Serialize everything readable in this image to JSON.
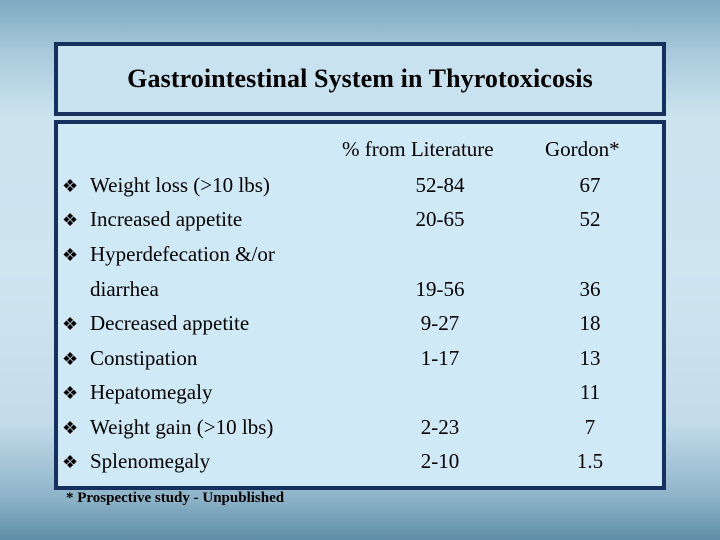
{
  "title": "Gastrointestinal System in Thyrotoxicosis",
  "bullet_glyph": "❖",
  "table": {
    "col_literature": "% from Literature",
    "col_gordon": "Gordon*",
    "rows": [
      {
        "label": "Weight loss (>10 lbs)",
        "literature": "52-84",
        "gordon": "67"
      },
      {
        "label": "Increased appetite",
        "literature": "20-65",
        "gordon": "52"
      },
      {
        "label": "Hyperdefecation &/or",
        "continuation": "diarrhea",
        "literature": "19-56",
        "gordon": "36"
      },
      {
        "label": "Decreased appetite",
        "literature": "9-27",
        "gordon": "18"
      },
      {
        "label": "Constipation",
        "literature": "1-17",
        "gordon": "13"
      },
      {
        "label": "Hepatomegaly",
        "literature": "",
        "gordon": "11"
      },
      {
        "label": "Weight gain (>10 lbs)",
        "literature": "2-23",
        "gordon": "7"
      },
      {
        "label": "Splenomegaly",
        "literature": "2-10",
        "gordon": "1.5"
      }
    ]
  },
  "footnote": "* Prospective study - Unpublished",
  "colors": {
    "border": "#17315e",
    "table_fill": "#d0e9f7",
    "title_fill": "#c9e2ef"
  }
}
